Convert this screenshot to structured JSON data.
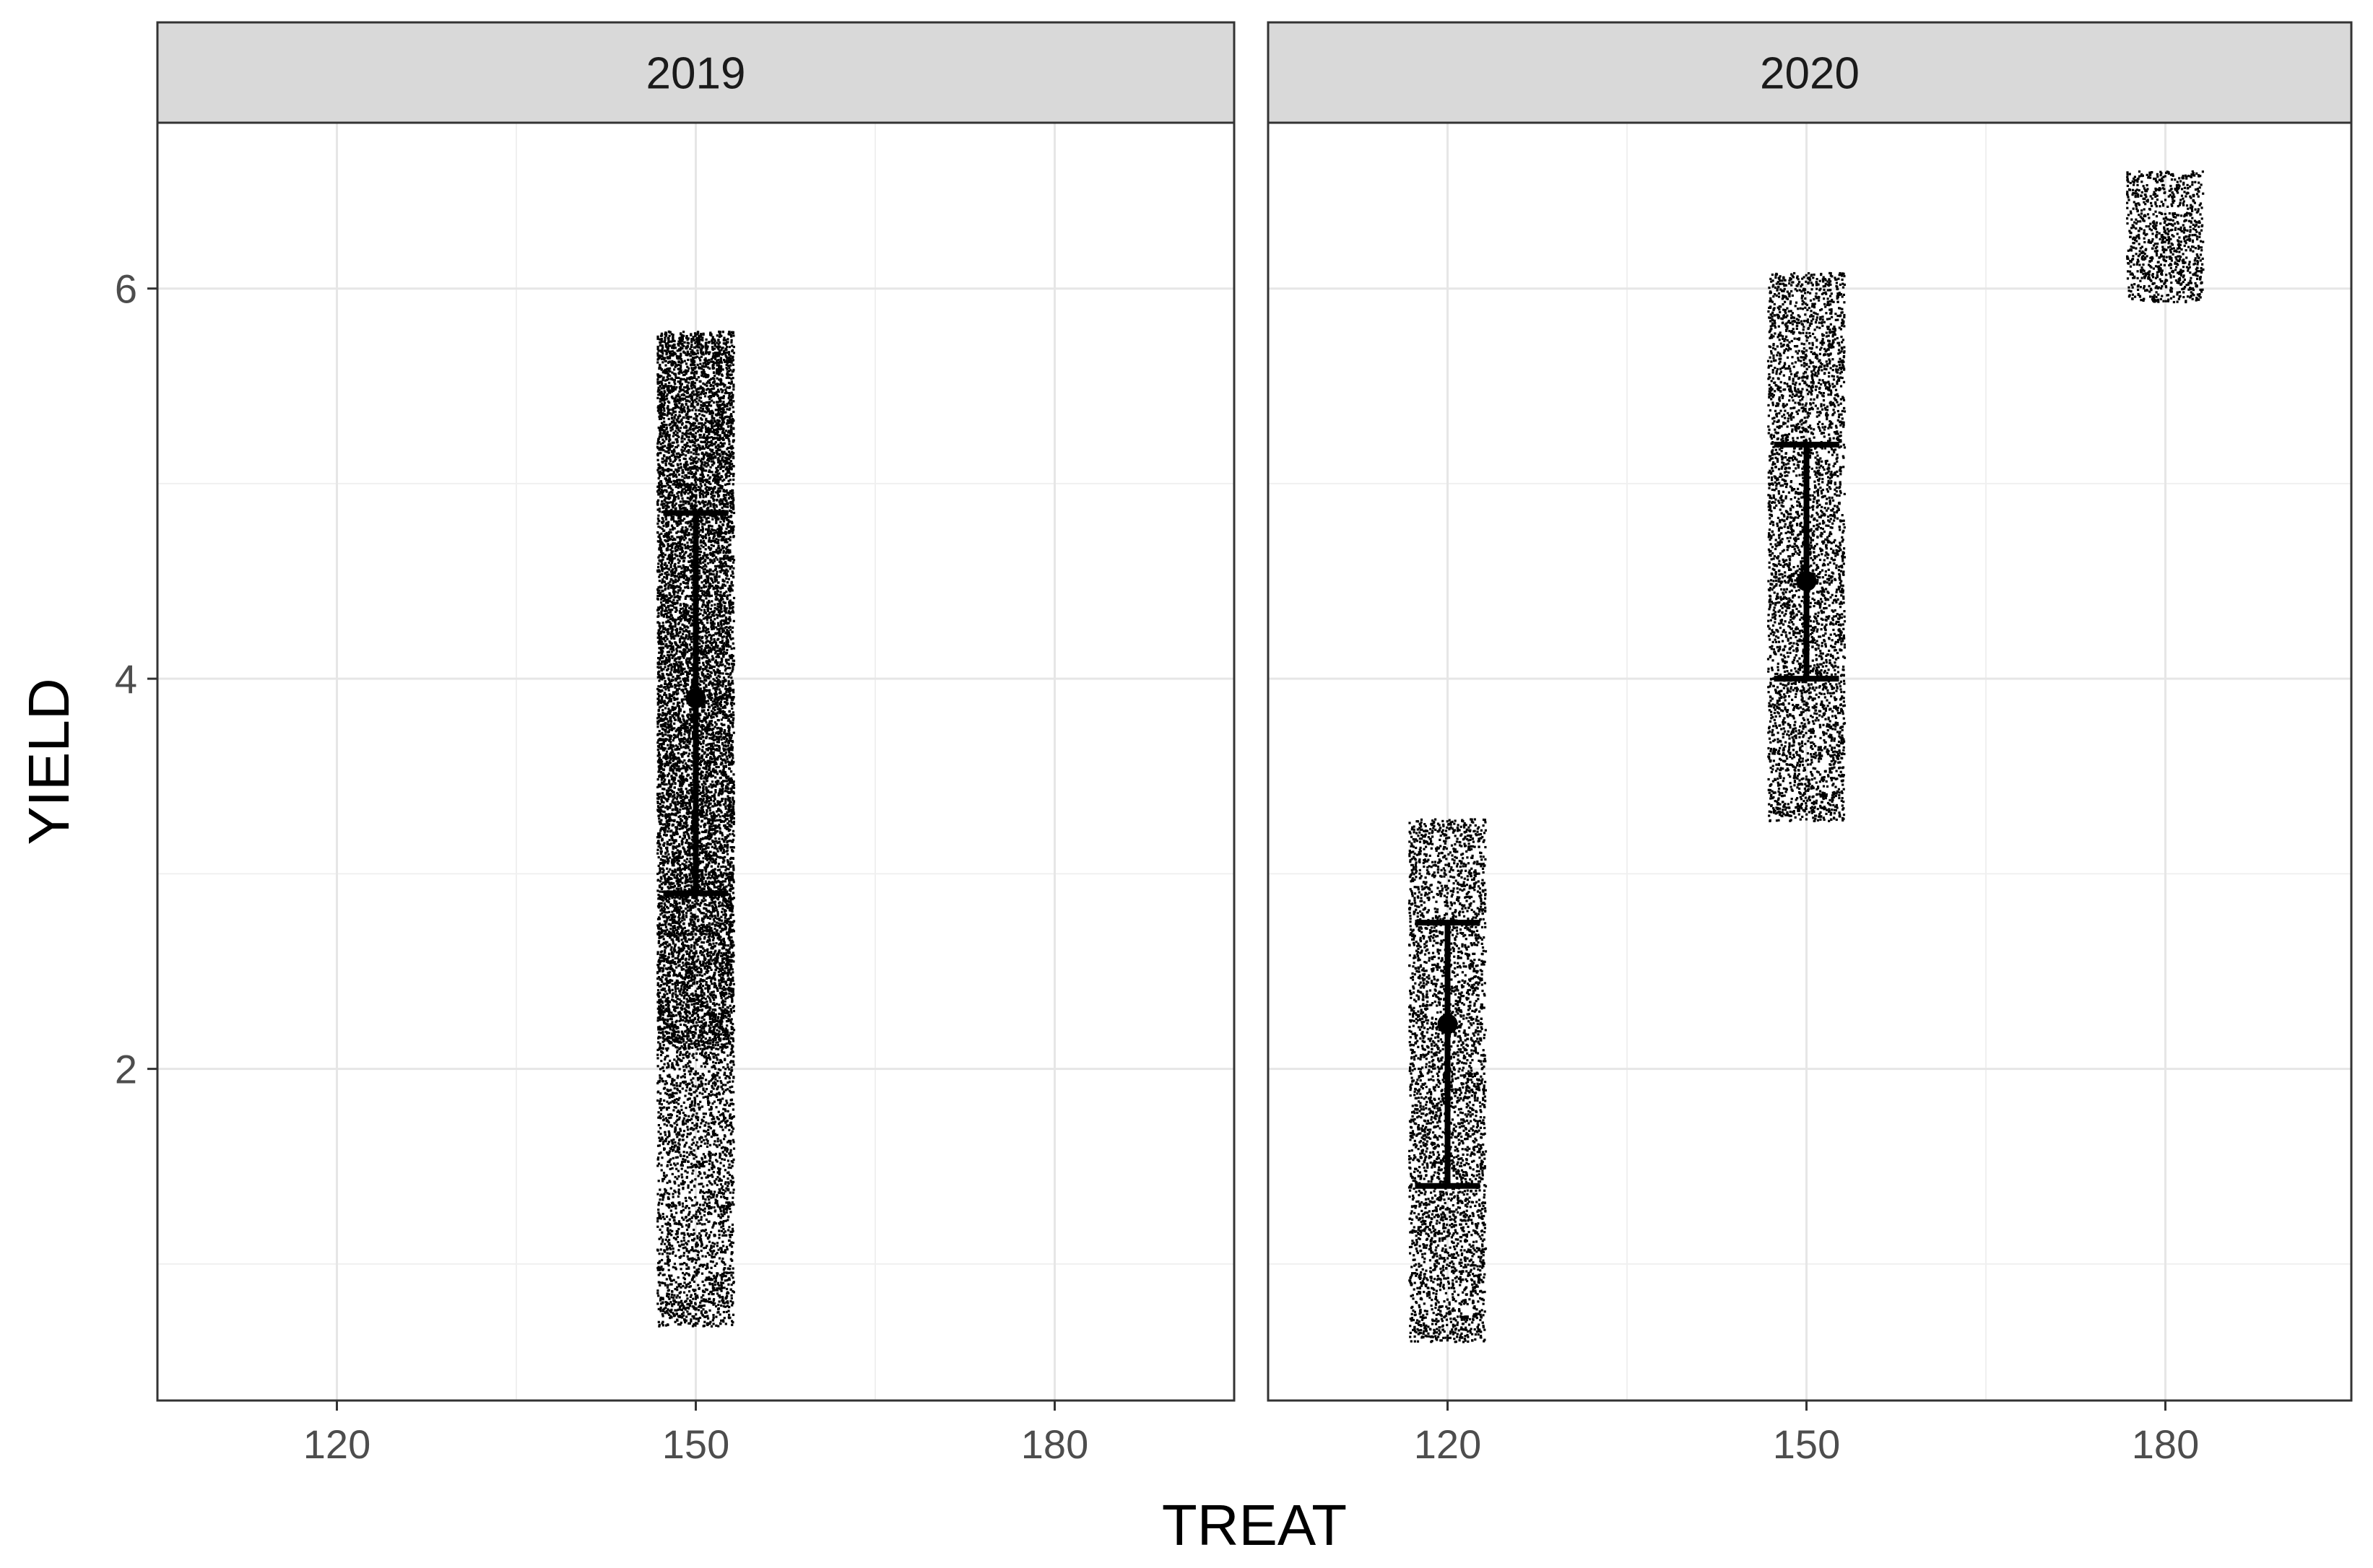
{
  "chart_data": {
    "type": "scatter",
    "xlabel": "TREAT",
    "ylabel": "YIELD",
    "x_ticks": [
      120,
      150,
      180
    ],
    "y_ticks": [
      2,
      4,
      6
    ],
    "xlim": [
      105,
      195
    ],
    "ylim": [
      0.3,
      6.85
    ],
    "grid": true,
    "legend": "none",
    "point_color": "#000000",
    "panels": [
      {
        "label": "2019",
        "jitter_groups": [
          {
            "x": 150,
            "y_min": 0.68,
            "y_max": 5.78,
            "dense_from": 2.1,
            "dense_to": 5.78
          }
        ],
        "summaries": [
          {
            "x": 150,
            "mean": 3.9,
            "lower": 2.9,
            "upper": 4.85
          }
        ]
      },
      {
        "label": "2020",
        "jitter_groups": [
          {
            "x": 120,
            "y_min": 0.6,
            "y_max": 3.28,
            "dense_from": 0.6,
            "dense_to": 3.28
          },
          {
            "x": 150,
            "y_min": 3.27,
            "y_max": 6.08,
            "dense_from": 3.27,
            "dense_to": 6.08
          },
          {
            "x": 180,
            "y_min": 5.93,
            "y_max": 6.6,
            "dense_from": 5.93,
            "dense_to": 6.6
          }
        ],
        "summaries": [
          {
            "x": 120,
            "mean": 2.23,
            "lower": 1.4,
            "upper": 2.75
          },
          {
            "x": 150,
            "mean": 4.5,
            "lower": 4.0,
            "upper": 5.2
          }
        ]
      }
    ]
  }
}
